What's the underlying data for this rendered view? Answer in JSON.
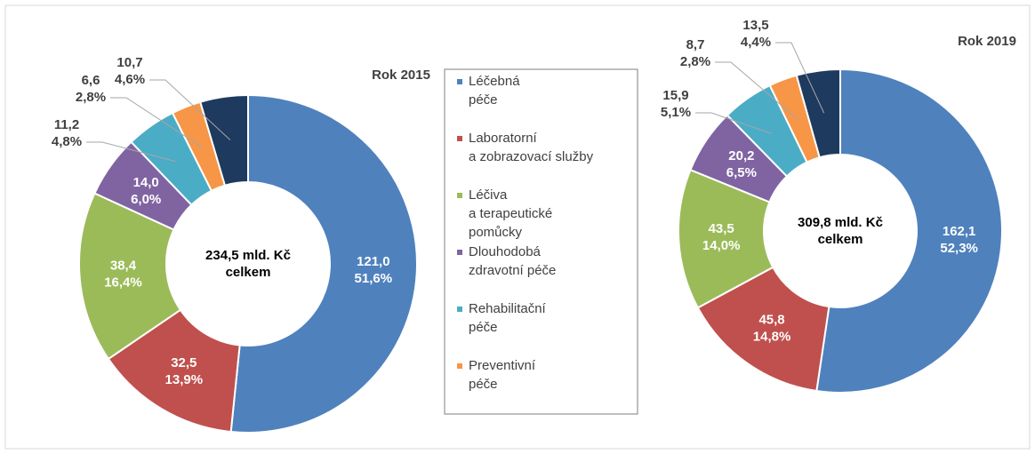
{
  "chart_data": [
    {
      "type": "donut",
      "title": "Rok 2015",
      "center_label": [
        "234,5 mld. Kč",
        "celkem"
      ],
      "categories": [
        "Léčebná\npéče",
        "Laboratorní\na zobrazovací služby",
        "Léčiva\na terapeutické\npomůcky",
        "Dlouhodobá\nzdravotní péče",
        "Rehabilitační\npéče",
        "Preventivní\npéče",
        null
      ],
      "colors": [
        "#4f81bd",
        "#c0504d",
        "#9bbb59",
        "#8064a2",
        "#4bacc6",
        "#f79646",
        "#1f3a5f"
      ],
      "values": [
        121.0,
        32.5,
        38.4,
        14.0,
        11.2,
        6.6,
        10.7
      ],
      "value_labels": [
        "121,0",
        "32,5",
        "38,4",
        "14,0",
        "11,2",
        "6,6",
        "10,7"
      ],
      "percents": [
        51.6,
        13.9,
        16.4,
        6.0,
        4.8,
        2.8,
        4.6
      ],
      "percent_labels": [
        "51,6%",
        "13,9%",
        "16,4%",
        "6,0%",
        "4,8%",
        "2,8%",
        "4,6%"
      ]
    },
    {
      "type": "donut",
      "title": "Rok 2019",
      "center_label": [
        "309,8 mld. Kč",
        "celkem"
      ],
      "colors": [
        "#4f81bd",
        "#c0504d",
        "#9bbb59",
        "#8064a2",
        "#4bacc6",
        "#f79646",
        "#1f3a5f"
      ],
      "values": [
        162.1,
        45.8,
        43.5,
        20.2,
        15.9,
        8.7,
        13.5
      ],
      "value_labels": [
        "162,1",
        "45,8",
        "43,5",
        "20,2",
        "15,9",
        "8,7",
        "13,5"
      ],
      "percents": [
        52.3,
        14.8,
        14.0,
        6.5,
        5.1,
        2.8,
        4.4
      ],
      "percent_labels": [
        "52,3%",
        "14,8%",
        "14,0%",
        "6,5%",
        "5,1%",
        "2,8%",
        "4,4%"
      ]
    }
  ]
}
